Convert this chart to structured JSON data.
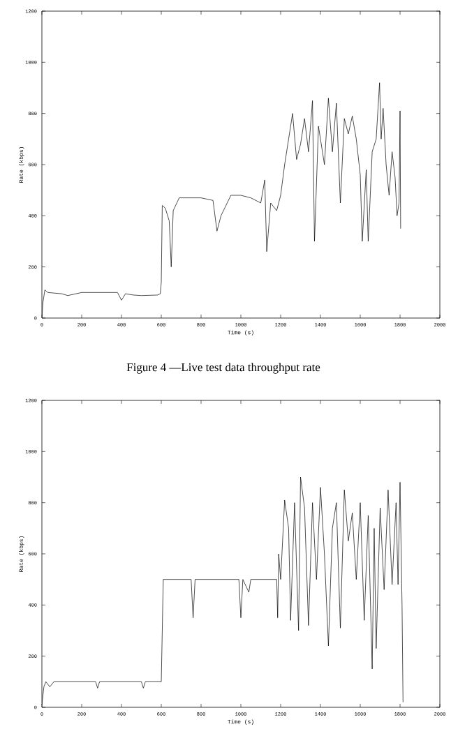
{
  "chart_data": [
    {
      "type": "line",
      "xlabel": "Time (s)",
      "ylabel": "Rate (kbps)",
      "annotations": [
        "Figure 4 —Live test data throughput rate"
      ],
      "xlim": [
        0,
        2000
      ],
      "ylim": [
        0,
        1200
      ],
      "xticks": [
        0,
        200,
        400,
        600,
        800,
        1000,
        1200,
        1400,
        1600,
        1800,
        2000
      ],
      "yticks": [
        0,
        200,
        400,
        600,
        800,
        1000,
        1200
      ],
      "marker": "none",
      "line_style": "solid",
      "series": [
        {
          "color": "#000000",
          "x": [
            0,
            5,
            15,
            30,
            100,
            130,
            200,
            300,
            380,
            400,
            420,
            460,
            500,
            580,
            595,
            600,
            605,
            620,
            640,
            650,
            660,
            690,
            800,
            860,
            880,
            900,
            950,
            1000,
            1050,
            1100,
            1120,
            1130,
            1150,
            1180,
            1200,
            1220,
            1240,
            1260,
            1280,
            1300,
            1320,
            1340,
            1360,
            1370,
            1390,
            1420,
            1440,
            1460,
            1480,
            1500,
            1520,
            1540,
            1560,
            1580,
            1600,
            1610,
            1630,
            1640,
            1660,
            1680,
            1697,
            1705,
            1715,
            1730,
            1745,
            1760,
            1775,
            1785,
            1795,
            1800,
            1803
          ],
          "values": [
            0,
            60,
            110,
            100,
            95,
            88,
            100,
            100,
            100,
            70,
            95,
            90,
            88,
            90,
            95,
            140,
            440,
            430,
            380,
            200,
            420,
            470,
            470,
            460,
            340,
            400,
            480,
            480,
            470,
            450,
            540,
            260,
            450,
            420,
            480,
            600,
            700,
            800,
            620,
            680,
            780,
            650,
            850,
            300,
            750,
            600,
            860,
            650,
            840,
            450,
            780,
            720,
            790,
            700,
            560,
            300,
            580,
            300,
            650,
            700,
            920,
            700,
            820,
            600,
            480,
            650,
            550,
            400,
            450,
            810,
            350
          ]
        }
      ]
    },
    {
      "type": "line",
      "xlabel": "Time (s)",
      "ylabel": "Rate (kbps)",
      "xlim": [
        0,
        2000
      ],
      "ylim": [
        0,
        1200
      ],
      "xticks": [
        0,
        200,
        400,
        600,
        800,
        1000,
        1200,
        1400,
        1600,
        1800,
        2000
      ],
      "yticks": [
        0,
        200,
        400,
        600,
        800,
        1000,
        1200
      ],
      "marker": "none",
      "line_style": "solid",
      "series": [
        {
          "color": "#000000",
          "x": [
            0,
            10,
            20,
            40,
            60,
            270,
            280,
            290,
            500,
            510,
            520,
            600,
            610,
            750,
            760,
            770,
            990,
            1000,
            1010,
            1040,
            1050,
            1180,
            1185,
            1190,
            1200,
            1220,
            1240,
            1250,
            1270,
            1290,
            1300,
            1320,
            1340,
            1360,
            1380,
            1400,
            1420,
            1440,
            1460,
            1480,
            1500,
            1520,
            1540,
            1560,
            1580,
            1600,
            1620,
            1640,
            1660,
            1670,
            1680,
            1700,
            1720,
            1740,
            1760,
            1780,
            1790,
            1800,
            1810,
            1815
          ],
          "values": [
            10,
            80,
            100,
            80,
            100,
            100,
            75,
            100,
            100,
            75,
            100,
            100,
            500,
            500,
            350,
            500,
            500,
            350,
            500,
            450,
            500,
            500,
            350,
            600,
            500,
            810,
            700,
            340,
            800,
            300,
            900,
            780,
            320,
            800,
            500,
            860,
            600,
            240,
            700,
            800,
            310,
            850,
            650,
            760,
            500,
            800,
            340,
            750,
            150,
            700,
            230,
            780,
            460,
            850,
            480,
            800,
            480,
            880,
            400,
            20
          ]
        }
      ]
    }
  ]
}
